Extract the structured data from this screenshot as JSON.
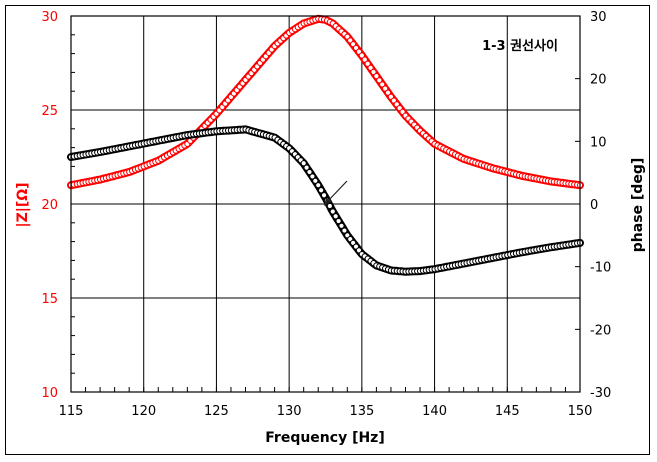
{
  "chart_data": {
    "type": "scatter",
    "title": "1-3 권선사이",
    "xlabel": "Frequency [Hz]",
    "ylabel": "|Z|[Ω]",
    "y2label": "phase [deg]",
    "xlim": [
      115,
      150
    ],
    "ylim": [
      10,
      30
    ],
    "y2lim": [
      -30,
      30
    ],
    "x_ticks": [
      "115",
      "120",
      "125",
      "130",
      "135",
      "140",
      "145",
      "150"
    ],
    "y_ticks": [
      "30",
      "25",
      "20",
      "15",
      "10"
    ],
    "y2_ticks": [
      "30",
      "20",
      "10",
      "0",
      "-10",
      "-20",
      "-30"
    ],
    "grid": true,
    "annotation": "arrow pointing to phase curve near 132.5 Hz, 0 deg",
    "x": [
      115,
      117,
      119,
      121,
      123,
      125,
      127,
      129,
      130,
      131,
      132,
      132.5,
      133,
      134,
      135,
      136,
      137,
      138,
      139,
      140,
      142,
      144,
      146,
      148,
      150
    ],
    "series": [
      {
        "name": "|Z|",
        "axis": "left",
        "color": "#ff0000",
        "values": [
          21.0,
          21.3,
          21.7,
          22.3,
          23.2,
          24.8,
          26.6,
          28.4,
          29.1,
          29.6,
          29.85,
          29.8,
          29.6,
          28.9,
          27.9,
          26.8,
          25.7,
          24.7,
          23.9,
          23.2,
          22.4,
          21.9,
          21.5,
          21.2,
          21.0
        ]
      },
      {
        "name": "phase",
        "axis": "right",
        "color": "#000000",
        "values": [
          7.5,
          8.3,
          9.2,
          10.1,
          11.0,
          11.6,
          11.9,
          10.6,
          8.9,
          6.5,
          3.0,
          1.0,
          -1.2,
          -5.0,
          -8.0,
          -9.8,
          -10.6,
          -10.8,
          -10.7,
          -10.4,
          -9.5,
          -8.6,
          -7.7,
          -6.9,
          -6.2
        ]
      }
    ]
  }
}
